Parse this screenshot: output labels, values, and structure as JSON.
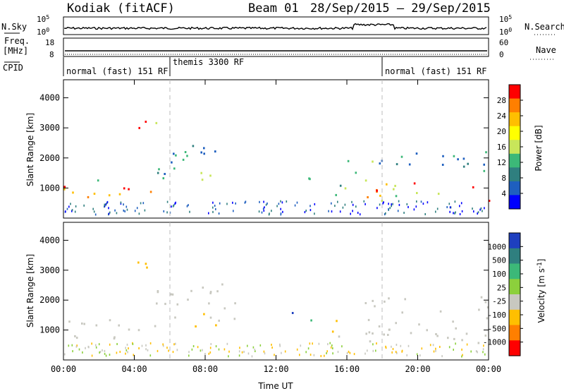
{
  "header": {
    "station": "Kodiak",
    "mode": "(fitACF)",
    "beam": "Beam 01",
    "date_range": "28/Sep/2015 – 29/Sep/2015"
  },
  "strips": {
    "nsky_label": "N.Sky",
    "nsky_ticks": [
      "10^5",
      "10^0"
    ],
    "nsearch_label": "N.Search",
    "nsearch_ticks": [
      "10^5",
      "10^0"
    ],
    "freq_label_1": "Freq.",
    "freq_label_2": "[MHz]",
    "freq_ticks": [
      "18",
      "8"
    ],
    "nave_label": "Nave",
    "nave_ticks": [
      "60",
      "0"
    ],
    "cpid_label": "CPID",
    "cpid_segments": [
      {
        "label": "normal (fast) 151 RF",
        "start_h": 0,
        "end_h": 6
      },
      {
        "label": "themis 3300 RF",
        "start_h": 6,
        "end_h": 18
      },
      {
        "label": "normal (fast) 151 RF",
        "start_h": 18,
        "end_h": 24
      }
    ]
  },
  "chart_data": [
    {
      "type": "heatmap",
      "quantity": "power",
      "ylabel": "Slant Range [km]",
      "ylim": [
        0,
        4600
      ],
      "yticks": [
        "4000",
        "3000",
        "2000",
        "1000"
      ],
      "xlim_hours": [
        0,
        24
      ],
      "colorbar_label": "Power [dB]",
      "colorbar_ticks": [
        "28",
        "24",
        "20",
        "16",
        "12",
        "8",
        "4"
      ],
      "colors": [
        "#ff0000",
        "#ff7f00",
        "#ffbf00",
        "#ffff00",
        "#c8e65a",
        "#3cb878",
        "#2f7f7f",
        "#1e5fbf",
        "#0000ff"
      ],
      "regions": [
        {
          "x0": 0,
          "x1": 5.5,
          "y0": 700,
          "y1": 1300,
          "level": "high"
        },
        {
          "x0": 5.5,
          "x1": 6.5,
          "y0": 1500,
          "y1": 2200,
          "level": "mid"
        },
        {
          "x0": 3.8,
          "x1": 5.2,
          "y0": 2600,
          "y1": 3300,
          "level": "high"
        },
        {
          "x0": 5.2,
          "x1": 6.8,
          "y0": 1200,
          "y1": 2500,
          "level": "low"
        },
        {
          "x0": 6.5,
          "x1": 9.5,
          "y0": 2000,
          "y1": 2700,
          "level": "low"
        },
        {
          "x0": 7,
          "x1": 8.6,
          "y0": 1100,
          "y1": 1600,
          "level": "mid"
        },
        {
          "x0": 12.8,
          "x1": 14.2,
          "y0": 1300,
          "y1": 1800,
          "level": "mid"
        },
        {
          "x0": 15,
          "x1": 16.2,
          "y0": 800,
          "y1": 1500,
          "level": "mid"
        },
        {
          "x0": 16,
          "x1": 18,
          "y0": 1300,
          "y1": 2100,
          "level": "mid"
        },
        {
          "x0": 17,
          "x1": 24,
          "y0": 600,
          "y1": 1300,
          "level": "high"
        },
        {
          "x0": 18,
          "x1": 24,
          "y0": 1600,
          "y1": 2300,
          "level": "low"
        }
      ]
    },
    {
      "type": "heatmap",
      "quantity": "velocity",
      "ylabel": "Slant Range [km]",
      "ylim": [
        0,
        4600
      ],
      "yticks": [
        "4000",
        "3000",
        "2000",
        "1000"
      ],
      "xlim_hours": [
        0,
        24
      ],
      "xticks": [
        "00:00",
        "04:00",
        "08:00",
        "12:00",
        "16:00",
        "20:00",
        "00:00"
      ],
      "xlabel": "Time UT",
      "colorbar_label": "Velocity [m s^-1]",
      "colorbar_ticks": [
        "1000",
        "500",
        "100",
        "25",
        "-25",
        "-100",
        "-500",
        "-1000"
      ],
      "colors": [
        "#1e3fbf",
        "#2f7f7f",
        "#3cb878",
        "#8cd03c",
        "#c8c8c0",
        "#ffbf00",
        "#ff7f00",
        "#ff0000"
      ],
      "regions": [
        {
          "x0": 0,
          "x1": 5.5,
          "y0": 700,
          "y1": 1400,
          "level": "ground"
        },
        {
          "x0": 5.2,
          "x1": 10,
          "y0": 1300,
          "y1": 2600,
          "level": "ground"
        },
        {
          "x0": 3.8,
          "x1": 5.2,
          "y0": 2600,
          "y1": 3300,
          "level": "neg-mid"
        },
        {
          "x0": 7,
          "x1": 8.6,
          "y0": 1100,
          "y1": 1600,
          "level": "pos-low"
        },
        {
          "x0": 12.8,
          "x1": 14.2,
          "y0": 1300,
          "y1": 1800,
          "level": "pos-mid"
        },
        {
          "x0": 15,
          "x1": 16.2,
          "y0": 800,
          "y1": 1500,
          "level": "pos-low"
        },
        {
          "x0": 17,
          "x1": 24,
          "y0": 600,
          "y1": 2200,
          "level": "ground"
        }
      ]
    }
  ]
}
